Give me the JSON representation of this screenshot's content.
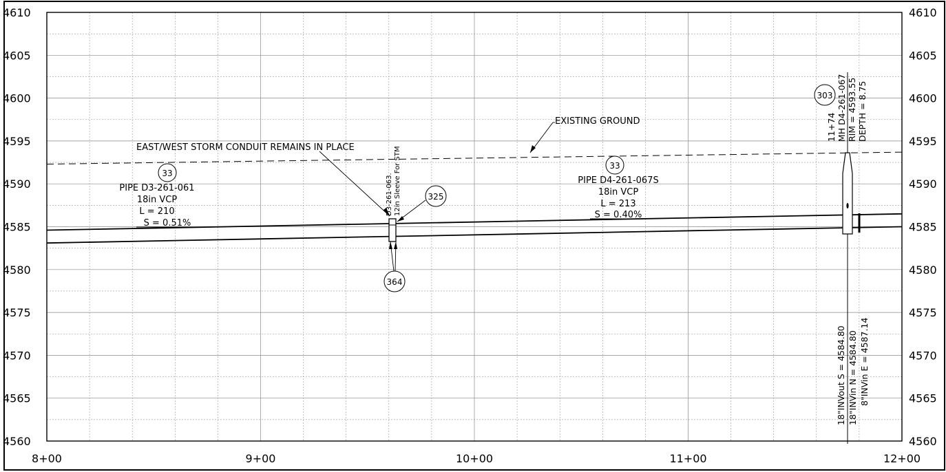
{
  "profile": {
    "y_axis": {
      "left_labels": [
        "4610",
        "4605",
        "4600",
        "4595",
        "4590",
        "4585",
        "4580",
        "4575",
        "4570",
        "4565",
        "4560"
      ],
      "right_labels": [
        "4610",
        "4605",
        "4600",
        "4595",
        "4590",
        "4585",
        "4580",
        "4575",
        "4570",
        "4565",
        "4560"
      ],
      "min": 4560,
      "max": 4610,
      "major_step": 5
    },
    "x_axis": {
      "labels": [
        "8+00",
        "9+00",
        "10+00",
        "11+00",
        "12+00"
      ],
      "min_station": 800,
      "max_station": 1200
    },
    "existing_ground": {
      "label": "EXISTING GROUND",
      "points": [
        [
          800,
          4592.3
        ],
        [
          1200,
          4593.7
        ]
      ]
    },
    "pipe_top": {
      "points": [
        [
          800,
          4584.6
        ],
        [
          1200,
          4586.5
        ]
      ]
    },
    "pipe_bottom": {
      "points": [
        [
          800,
          4583.1
        ],
        [
          1200,
          4585.0
        ]
      ]
    },
    "storm_conduit_note": "EAST/WEST STORM CONDUIT REMAINS IN PLACE",
    "pipe_left": {
      "callout": "33",
      "name": "PIPE D3-261-061",
      "size": "18in VCP",
      "length": "L = 210",
      "slope": "S = 0.51%"
    },
    "pipe_right": {
      "callout": "33",
      "name": "PIPE D4-261-067S",
      "size": "18in VCP",
      "length": "L = 213",
      "slope": "S = 0.40%"
    },
    "sleeve": {
      "station": 961,
      "label_1": "D3-261-063.",
      "label_2": "12in Sleeve For STM",
      "callout_top": "325",
      "callout_bottom": "364"
    },
    "manhole": {
      "callout": "303",
      "station_label": "11+74",
      "id_label": "MH D4-261-067",
      "rim_label": "RIM = 4593.55",
      "depth_label": "DEPTH = 8.75",
      "inv_out_s": "18\"INVout S = 4584.80",
      "inv_in_n": "18\"INVin N = 4584.80",
      "inv_in_e": "8\"INVin E = 4587.14"
    }
  }
}
